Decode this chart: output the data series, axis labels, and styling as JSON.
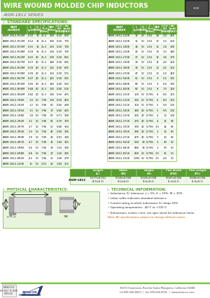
{
  "title": "WIRE WOUND MOLDED CHIP INDUCTORS",
  "series": "AISM-1812 SERIES",
  "header_bg": "#7cc242",
  "table_header_bg": "#5a9e30",
  "table_border": "#7cc242",
  "bg_color": "#ffffff",
  "section_label_color": "#5a9e30",
  "left_table_headers": [
    "PART\nNUMBER",
    "L\n(μH)",
    "Q\n(MIN)",
    "L\nTest\n(MHz)",
    "SRF\n(MHz)",
    "DCR\n(Ω)\n(MAX)",
    "Idc\n(mA)\n(MAX)"
  ],
  "right_table_headers": [
    "PART\nNUMBER",
    "L\n(μH)",
    "Q\n(MIN)",
    "L\nTest\n(MHz)",
    "SRF\n(MHz)",
    "DCR\n(Ω)\n(MAX)",
    "Idc\n(mA)\n(MAX)"
  ],
  "left_data": [
    [
      "AISM-1812-R10M",
      "0.10",
      "35",
      "25.2",
      "300",
      "0.20",
      "800"
    ],
    [
      "AISM-1812-R12M",
      "0.12",
      "35",
      "25.2",
      "300",
      "0.20",
      "770"
    ],
    [
      "AISM-1812-R15M",
      "0.15",
      "35",
      "25.2",
      "250",
      "0.20",
      "730"
    ],
    [
      "AISM-1812-R18M",
      "0.18",
      "35",
      "25.2",
      "200",
      "0.20",
      "700"
    ],
    [
      "AISM-1812-R22M",
      "0.22",
      "40",
      "25.2",
      "200",
      "0.30",
      "665"
    ],
    [
      "AISM-1812-R27M",
      "0.27",
      "40",
      "25.2",
      "180",
      "0.30",
      "635"
    ],
    [
      "AISM-1812-R33M",
      "0.33",
      "40",
      "25.2",
      "165",
      "0.30",
      "605"
    ],
    [
      "AISM-1812-R39M",
      "0.39",
      "40",
      "25.2",
      "150",
      "0.30",
      "575"
    ],
    [
      "AISM-1812-R47M",
      "0.47",
      "40",
      "25.2",
      "145",
      "0.30",
      "545"
    ],
    [
      "AISM-1812-R56M",
      "0.56",
      "40",
      "25.2",
      "140",
      "0.40",
      "520"
    ],
    [
      "AISM-1812-R68M",
      "0.68",
      "40",
      "25.2",
      "135",
      "0.40",
      "500"
    ],
    [
      "AISM-1812-R82M",
      "0.82",
      "40",
      "25.2",
      "130",
      "0.50",
      "475"
    ],
    [
      "AISM-1812-1R0K",
      "1.0",
      "50",
      "7.96",
      "100",
      "0.50",
      "450"
    ],
    [
      "AISM-1812-1R2K",
      "1.2",
      "50",
      "7.96",
      "80",
      "0.60",
      "430"
    ],
    [
      "AISM-1812-1R5K",
      "1.5",
      "50",
      "7.96",
      "70",
      "0.60",
      "410"
    ],
    [
      "AISM-1812-1R8K",
      "1.8",
      "50",
      "7.96",
      "60",
      "0.71",
      "390"
    ],
    [
      "AISM-1812-2R2K",
      "2.2",
      "50",
      "7.96",
      "55",
      "0.70",
      "370"
    ],
    [
      "AISM-1812-2R7K",
      "2.7",
      "50",
      "7.96",
      "50",
      "0.80",
      "350"
    ],
    [
      "AISM-1812-3R3K",
      "3.3",
      "50",
      "7.96",
      "45",
      "0.90",
      "335"
    ],
    [
      "AISM-1812-3R9K",
      "3.9",
      "50",
      "7.96",
      "40",
      "0.91",
      "330"
    ],
    [
      "AISM-1812-4R7K",
      "4.7",
      "50",
      "7.96",
      "35",
      "1.00",
      "315"
    ],
    [
      "AISM-1812-5R6K",
      "5.6",
      "50",
      "7.96",
      "33",
      "1.10",
      "300"
    ],
    [
      "AISM-1812-6R8K",
      "6.8",
      "50",
      "7.96",
      "27",
      "1.20",
      "285"
    ],
    [
      "AISM-1812-8R2K",
      "8.2",
      "50",
      "7.96",
      "25",
      "1.40",
      "270"
    ],
    [
      "AISM-1812-100K",
      "10",
      "50",
      "2.52",
      "22",
      "1.60",
      "255"
    ]
  ],
  "right_data": [
    [
      "AISM-1812-120K",
      "12",
      "50",
      "2.52",
      "18",
      "2.0",
      "225"
    ],
    [
      "AISM-1812-150K",
      "15",
      "50",
      "2.52",
      "17",
      "2.5",
      "200"
    ],
    [
      "AISM-1812-180K",
      "18",
      "50",
      "2.52",
      "15",
      "2.8",
      "190"
    ],
    [
      "AISM-1812-220K",
      "22",
      "50",
      "2.52",
      "13",
      "3.2",
      "180"
    ],
    [
      "AISM-1812-270K",
      "27",
      "50",
      "2.52",
      "12",
      "3.6",
      "170"
    ],
    [
      "AISM-1812-330K",
      "33",
      "50",
      "2.52",
      "11",
      "4.0",
      "160"
    ],
    [
      "AISM-1812-390K",
      "39",
      "50",
      "2.52",
      "10",
      "4.5",
      "150"
    ],
    [
      "AISM-1812-470K",
      "47",
      "50",
      "2.52",
      "10",
      "5.0",
      "140"
    ],
    [
      "AISM-1812-560K",
      "56",
      "50",
      "2.52",
      "9",
      "5.5",
      "135"
    ],
    [
      "AISM-1812-680K",
      "68",
      "50",
      "2.52",
      "9",
      "6.0",
      "130"
    ],
    [
      "AISM-1812-820K",
      "82",
      "50",
      "2.52",
      "8",
      "7.0",
      "120"
    ],
    [
      "AISM-1812-101K",
      "100",
      "50",
      "0.796",
      "8",
      "8.0",
      "110"
    ],
    [
      "AISM-1812-121K",
      "120",
      "50",
      "0.796",
      "6",
      "8.0",
      "110"
    ],
    [
      "AISM-1812-151K",
      "150",
      "50",
      "0.796",
      "5",
      "9.0",
      "105"
    ],
    [
      "AISM-1812-181K",
      "180",
      "40",
      "0.796",
      "5",
      "9.5",
      "100"
    ],
    [
      "AISM-1812-221K",
      "220",
      "40",
      "0.796",
      "4",
      "10",
      "100"
    ],
    [
      "AISM-1812-271K",
      "270",
      "40",
      "0.796",
      "4",
      "12",
      "92"
    ],
    [
      "AISM-1812-331K",
      "330",
      "40",
      "0.796",
      "3.5",
      "14",
      "85"
    ],
    [
      "AISM-1812-391K",
      "390",
      "40",
      "0.796",
      "3",
      "16",
      "80"
    ],
    [
      "AISM-1812-471K",
      "470",
      "40",
      "0.796",
      "3",
      "20",
      "62"
    ],
    [
      "AISM-1812-561K",
      "560",
      "30",
      "0.796",
      "3",
      "30",
      "50"
    ],
    [
      "AISM-1812-681K",
      "680",
      "30",
      "0.796",
      "3",
      "30",
      "50"
    ],
    [
      "AISM-1812-821K",
      "820",
      "20",
      "0.796",
      "2.5",
      "35",
      "50"
    ],
    [
      "AISM-1812-102K",
      "1000",
      "20",
      "0.796",
      "2.5",
      "4.0",
      "50"
    ]
  ],
  "dim_table_headers": [
    "Length\n(L)",
    "Width\n(W)",
    "Height\n(H)",
    "Pad Width\n(PW)",
    "Pad Length\n(PL)"
  ],
  "dim_row_label": "AISM-1812",
  "dim_values": [
    "0.177±0.012\n(4.5±0.3)",
    "0.126±0.008\n(3.2±0.2)",
    "0.126±0.008\n(3.2±0.2)",
    "0.047±0.004\n(1.2±0.1)",
    "0.040±0.004\n(1.0±0.1)"
  ],
  "tech_info_title": "TECHNICAL INFORMATION:",
  "tech_info": [
    "Inductance (L) tolerance: J = 5%, K = 10%, M = 20%",
    "Letter suffix indicates standard tolerance",
    "Current rating at which inductance (L) drops 10%",
    "Operating temperature: -40°C to +125°C",
    "Dimensions: inches / mm; see spec sheet for tolerance limits",
    "Note: All specifications subject to change without notice."
  ],
  "phys_title": "PHYSICAL CHARACTERISTICS:",
  "std_spec_title": "STANDARD SPECIFICATIONS:",
  "footer_address": "30272 Esperanza, Rancho Santa Margarita, California 92688",
  "footer_phone": "tel 949-546-8000  |  fax 949-546-8001  |  www.abracon.com",
  "iso_text": "ABRACON IS\nISO 9001 / TS 16949\nCERTIFIED"
}
